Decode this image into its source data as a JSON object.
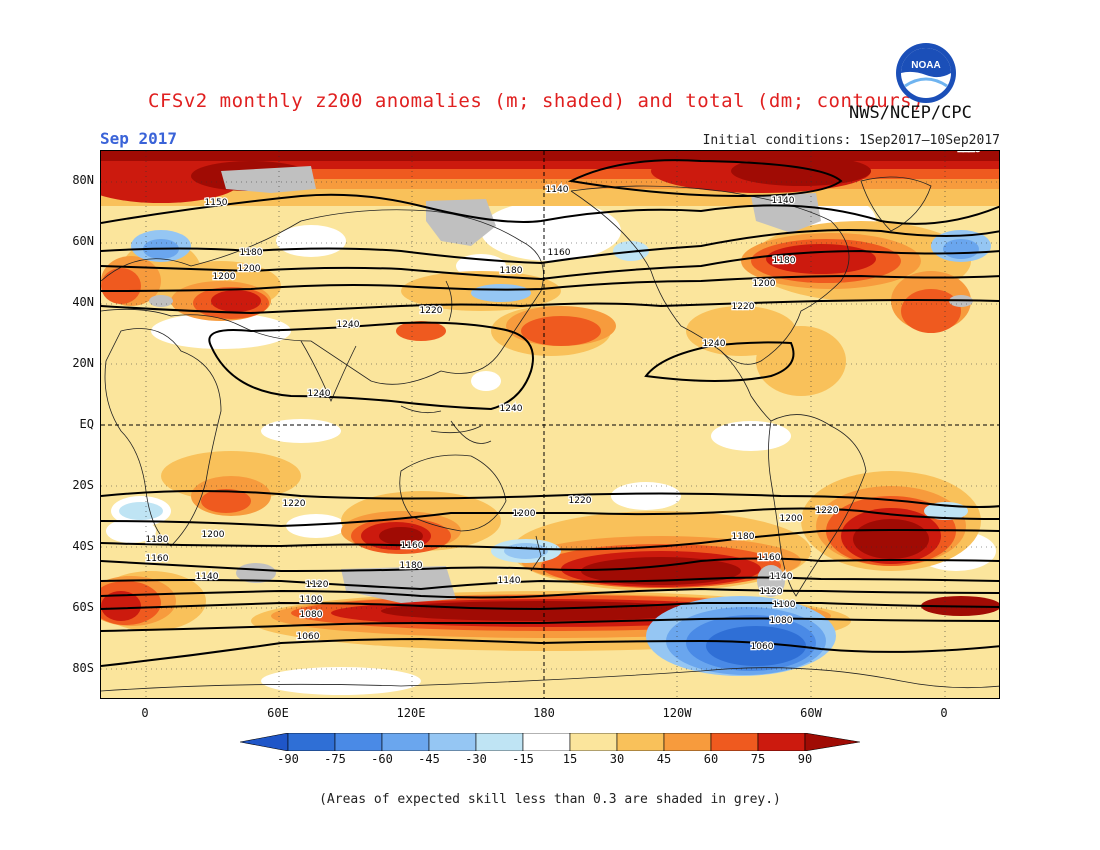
{
  "header": {
    "title": "CFSv2 monthly z200 anomalies (m; shaded) and total (dm; contours)",
    "month": "Sep 2017",
    "initial_conditions": "Initial conditions: 1Sep2017–10Sep2017",
    "agency": "NWS/NCEP/CPC",
    "logo_text": "NOAA"
  },
  "map": {
    "lat_labels": [
      "80N",
      "60N",
      "40N",
      "20N",
      "EQ",
      "20S",
      "40S",
      "60S",
      "80S"
    ],
    "lon_labels": [
      "0",
      "60E",
      "120E",
      "180",
      "120W",
      "60W",
      "0"
    ],
    "contour_labels": [
      "1240",
      "1240",
      "1240",
      "1240",
      "1220",
      "1220",
      "1220",
      "1200",
      "1200",
      "1200",
      "1180",
      "1180",
      "1180",
      "1160",
      "1150",
      "1140",
      "1140",
      "1220",
      "1220",
      "1200",
      "1200",
      "1180",
      "1180",
      "1160",
      "1160",
      "1140",
      "1140",
      "1120",
      "1120",
      "1100",
      "1100",
      "1080",
      "1080",
      "1060",
      "1060",
      "1160",
      "1220",
      "1200",
      "1180",
      "1140"
    ],
    "shading_colors": {
      "neg90": "#2f6fd6",
      "neg75": "#4a8ae6",
      "neg60": "#6aa6ee",
      "neg45": "#95c6f3",
      "neg30": "#bfe4f4",
      "neutral": "#ffffff",
      "pos15": "#fbe59c",
      "pos30": "#f9c15a",
      "pos45": "#f79b3d",
      "pos60": "#ef5a1f",
      "pos75": "#cc1a0e",
      "pos90": "#a00b04",
      "low_skill": "#c0c0c0"
    }
  },
  "colorbar": {
    "ticks": [
      "-90",
      "-75",
      "-60",
      "-45",
      "-30",
      "-15",
      "15",
      "30",
      "45",
      "60",
      "75",
      "90"
    ]
  },
  "footnote": "(Areas of expected skill less than 0.3 are shaded in grey.)"
}
